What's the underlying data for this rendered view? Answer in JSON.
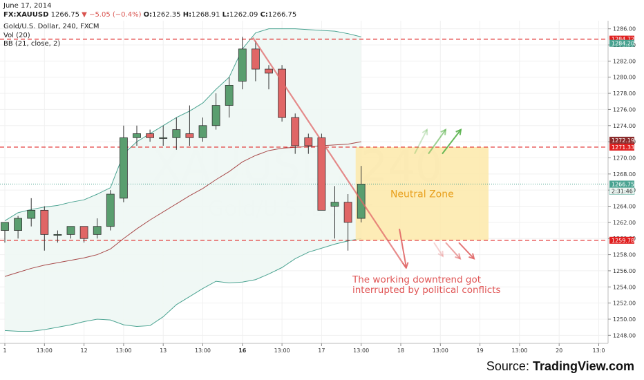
{
  "header": {
    "date": "June 17, 2014",
    "symbol": "FX:XAUUSD",
    "last": "1266.75",
    "change_symbol": "▼",
    "change": "−5.05 (−0.4%)",
    "open_label": "O:",
    "open": "1262.35",
    "high_label": "H:",
    "high": "1268.91",
    "low_label": "L:",
    "low": "1262.09",
    "close_label": "C:",
    "close": "1266.75",
    "title": "Gold/U.S. Dollar, 240, FXCM",
    "volume": "Vol (20)",
    "bb": "BB (21, close, 2)"
  },
  "watermark": {
    "symbol": "XAUUSD",
    "interval": "240",
    "name": "Gold/U.S. Dollar"
  },
  "source": {
    "prefix": "Source: ",
    "brand": "TradingView.com"
  },
  "colors": {
    "up": "#5a9e6f",
    "down": "#e06666",
    "bb_band": "#4aa391",
    "bb_mid": "#a84a4a",
    "bb_fill": "#eef7f4",
    "level": "#e02020",
    "zone": "#fde9a9",
    "zone_text": "#e8a01e",
    "arrow_down": "#e06666",
    "arrow_up": "#58b14a",
    "annotation": "#e05555"
  },
  "chart_data": {
    "type": "candlestick",
    "title": "Gold/U.S. Dollar, 240, FXCM",
    "ylim": [
      1247,
      1287
    ],
    "x_ticks": [
      "1",
      "13:00",
      "12",
      "13:00",
      "13",
      "13:00",
      "16",
      "13:00",
      "17",
      "13:00",
      "18",
      "13:00",
      "19",
      "13:00",
      "20",
      "13:0"
    ],
    "y_ticks": [
      1248,
      1250,
      1252,
      1254,
      1256,
      1258,
      1260,
      1262,
      1264,
      1266,
      1268,
      1270,
      1272,
      1274,
      1276,
      1278,
      1280,
      1282,
      1284,
      1286
    ],
    "candles": [
      {
        "o": 1261.0,
        "h": 1262.0,
        "l": 1259.5,
        "c": 1262.0
      },
      {
        "o": 1261.0,
        "h": 1262.8,
        "l": 1260.0,
        "c": 1262.5
      },
      {
        "o": 1262.5,
        "h": 1265.0,
        "l": 1261.5,
        "c": 1263.5
      },
      {
        "o": 1263.5,
        "h": 1264.0,
        "l": 1258.5,
        "c": 1260.5
      },
      {
        "o": 1260.5,
        "h": 1261.0,
        "l": 1259.5,
        "c": 1260.5
      },
      {
        "o": 1260.5,
        "h": 1261.5,
        "l": 1260.0,
        "c": 1261.5
      },
      {
        "o": 1261.5,
        "h": 1261.5,
        "l": 1259.5,
        "c": 1260.0
      },
      {
        "o": 1260.5,
        "h": 1262.5,
        "l": 1260.0,
        "c": 1261.5
      },
      {
        "o": 1261.5,
        "h": 1266.0,
        "l": 1261.0,
        "c": 1265.5
      },
      {
        "o": 1265.0,
        "h": 1274.0,
        "l": 1264.5,
        "c": 1272.5
      },
      {
        "o": 1272.5,
        "h": 1274.0,
        "l": 1271.5,
        "c": 1273.0
      },
      {
        "o": 1273.0,
        "h": 1273.5,
        "l": 1272.0,
        "c": 1272.5
      },
      {
        "o": 1272.5,
        "h": 1274.0,
        "l": 1271.5,
        "c": 1272.5
      },
      {
        "o": 1272.5,
        "h": 1275.0,
        "l": 1271.0,
        "c": 1273.5
      },
      {
        "o": 1273.0,
        "h": 1276.5,
        "l": 1271.5,
        "c": 1272.5
      },
      {
        "o": 1272.5,
        "h": 1275.0,
        "l": 1272.0,
        "c": 1274.0
      },
      {
        "o": 1274.0,
        "h": 1278.0,
        "l": 1273.5,
        "c": 1276.5
      },
      {
        "o": 1276.5,
        "h": 1280.0,
        "l": 1275.0,
        "c": 1279.0
      },
      {
        "o": 1279.5,
        "h": 1285.0,
        "l": 1278.5,
        "c": 1283.5
      },
      {
        "o": 1283.5,
        "h": 1284.5,
        "l": 1279.5,
        "c": 1281.0
      },
      {
        "o": 1281.0,
        "h": 1281.5,
        "l": 1278.5,
        "c": 1280.5
      },
      {
        "o": 1281.0,
        "h": 1281.5,
        "l": 1274.5,
        "c": 1275.0
      },
      {
        "o": 1275.0,
        "h": 1275.5,
        "l": 1270.5,
        "c": 1271.5
      },
      {
        "o": 1272.5,
        "h": 1273.0,
        "l": 1270.5,
        "c": 1271.5
      },
      {
        "o": 1272.5,
        "h": 1273.0,
        "l": 1263.5,
        "c": 1263.5
      },
      {
        "o": 1264.0,
        "h": 1266.5,
        "l": 1260.0,
        "c": 1264.5
      },
      {
        "o": 1264.5,
        "h": 1265.5,
        "l": 1258.5,
        "c": 1262.0
      },
      {
        "o": 1262.5,
        "h": 1269.0,
        "l": 1262.0,
        "c": 1266.75
      }
    ],
    "bb_upper": [
      1262.2,
      1263.2,
      1263.6,
      1263.9,
      1264.1,
      1264.5,
      1264.8,
      1265.5,
      1266.3,
      1270.5,
      1272.0,
      1273.0,
      1274.0,
      1275.0,
      1275.8,
      1276.8,
      1278.5,
      1280.0,
      1283.5,
      1285.5,
      1286.0,
      1286.0,
      1286.0,
      1285.9,
      1285.8,
      1285.7,
      1285.4,
      1285.0
    ],
    "bb_mid": [
      1255.3,
      1255.8,
      1256.3,
      1256.7,
      1257.0,
      1257.3,
      1257.6,
      1258.0,
      1258.7,
      1260.0,
      1261.2,
      1262.3,
      1263.3,
      1264.3,
      1265.3,
      1266.2,
      1267.3,
      1268.3,
      1269.5,
      1270.3,
      1270.9,
      1271.2,
      1271.3,
      1271.4,
      1271.5,
      1271.6,
      1271.7,
      1272.0
    ],
    "bb_lower": [
      1248.6,
      1248.5,
      1248.5,
      1248.7,
      1249.0,
      1249.3,
      1249.7,
      1250.0,
      1249.9,
      1249.3,
      1249.1,
      1249.2,
      1250.3,
      1251.8,
      1252.8,
      1253.8,
      1254.7,
      1254.5,
      1254.6,
      1254.9,
      1255.6,
      1256.4,
      1257.5,
      1258.3,
      1258.8,
      1259.3,
      1259.7,
      1260.0
    ],
    "levels": [
      1284.72,
      1271.33,
      1259.78
    ],
    "price_labels": [
      {
        "value": 1284.72,
        "text": "1284.72",
        "color": "#e02020"
      },
      {
        "value": 1284.2,
        "text": "1284.20",
        "color": "#4aa391"
      },
      {
        "value": 1272.19,
        "text": "1272.19",
        "color": "#8b2b2b"
      },
      {
        "value": 1271.33,
        "text": "1271.33",
        "color": "#e02020"
      },
      {
        "value": 1266.75,
        "text": "1266.75",
        "color": "#4aa391"
      },
      {
        "value": 1259.78,
        "text": "1259.78",
        "color": "#e02020"
      }
    ],
    "countdown": "2:31:46",
    "neutral_zone": {
      "label": "Neutral Zone",
      "y_range": [
        1259.78,
        1271.33
      ]
    },
    "annotation_lines": [
      "The working downtrend got",
      "interrupted by political conflicts"
    ]
  }
}
